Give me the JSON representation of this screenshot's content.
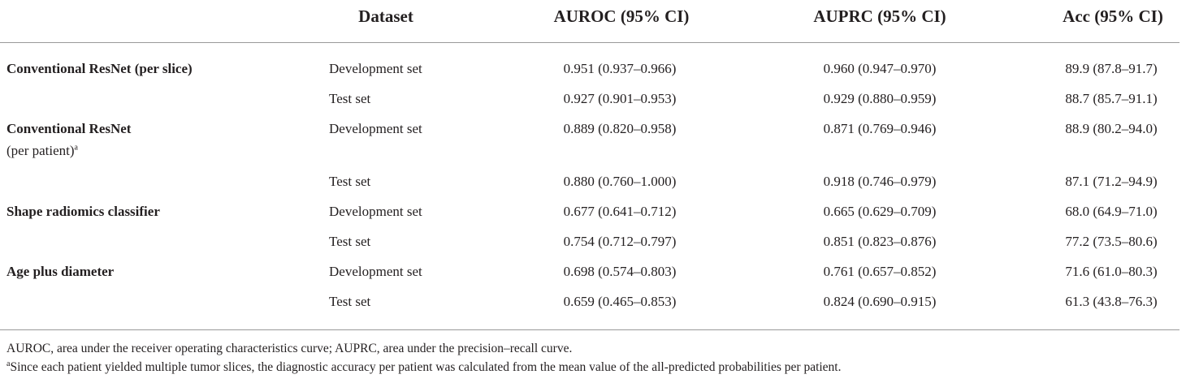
{
  "table": {
    "header": [
      "Dataset",
      "AUROC (95% CI)",
      "AUPRC (95% CI)",
      "Acc (95% CI)"
    ],
    "groups": [
      {
        "model": "Conventional ResNet (per slice)",
        "rows": [
          [
            "Development set",
            "0.951 (0.937–0.966)",
            "0.960 (0.947–0.970)",
            "89.9 (87.8–91.7)"
          ],
          [
            "Test set",
            "0.927 (0.901–0.953)",
            "0.929 (0.880–0.959)",
            "88.7 (85.7–91.1)"
          ]
        ]
      },
      {
        "model": "Conventional ResNet",
        "model_note": "(per patient)",
        "model_mark": "a",
        "rows": [
          [
            "Development set",
            "0.889 (0.820–0.958)",
            "0.871 (0.769–0.946)",
            "88.9 (80.2–94.0)"
          ],
          [
            "Test set",
            "0.880 (0.760–1.000)",
            "0.918 (0.746–0.979)",
            "87.1 (71.2–94.9)"
          ]
        ]
      },
      {
        "model": "Shape radiomics classifier",
        "rows": [
          [
            "Development set",
            "0.677 (0.641–0.712)",
            "0.665 (0.629–0.709)",
            "68.0 (64.9–71.0)"
          ],
          [
            "Test set",
            "0.754 (0.712–0.797)",
            "0.851 (0.823–0.876)",
            "77.2 (73.5–80.6)"
          ]
        ]
      },
      {
        "model": "Age plus diameter",
        "rows": [
          [
            "Development set",
            "0.698 (0.574–0.803)",
            "0.761 (0.657–0.852)",
            "71.6 (61.0–80.3)"
          ],
          [
            "Test set",
            "0.659 (0.465–0.853)",
            "0.824 (0.690–0.915)",
            "61.3 (43.8–76.3)"
          ]
        ]
      }
    ]
  },
  "footnotes": [
    {
      "text": "AUROC, area under the receiver operating characteristics curve; AUPRC, area under the precision–recall curve."
    },
    {
      "mark": "a",
      "text": "Since each patient yielded multiple tumor slices, the diagnostic accuracy per patient was calculated from the mean value of the all-predicted probabilities per patient."
    }
  ]
}
